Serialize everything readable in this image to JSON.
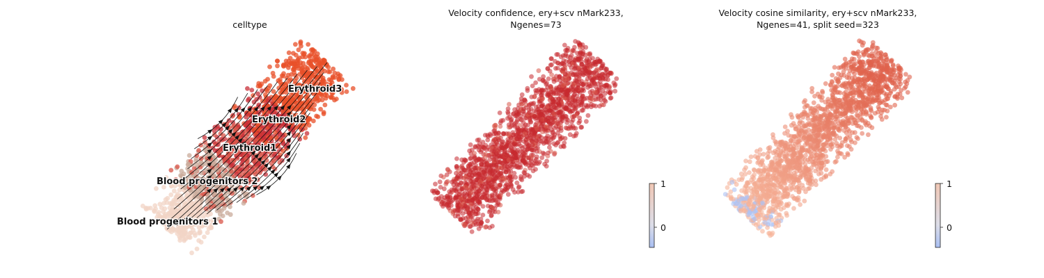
{
  "panels": [
    {
      "title": "celltype"
    },
    {
      "title": "Velocity confidence, ery+scv nMark233,\nNgenes=73"
    },
    {
      "title": "Velocity cosine similarity, ery+scv nMark233,\nNgenes=41, split seed=323"
    }
  ],
  "celltype_labels": [
    "Blood progenitors 1",
    "Blood progenitors 2",
    "Erythroid1",
    "Erythroid2",
    "Erythroid3"
  ],
  "colors": {
    "Blood progenitors 1": "#f1d4c6",
    "Blood progenitors 2": "#c9ab9b",
    "Erythroid1": "#d9564a",
    "Erythroid2": "#c8303a",
    "Erythroid3": "#e8502a",
    "confidence_point": "#c62a30",
    "cosine_point_high": "#e0634c",
    "cosine_point_low": "#f6b49a",
    "cosine_point_negative": "#aec3f5"
  },
  "colorbars": [
    {
      "ticks": [
        "1",
        "0"
      ]
    },
    {
      "ticks": [
        "1",
        "0"
      ]
    }
  ],
  "chart_data": [
    {
      "type": "scatter",
      "title": "celltype",
      "categories": [
        "Blood progenitors 1",
        "Blood progenitors 2",
        "Erythroid1",
        "Erythroid2",
        "Erythroid3"
      ],
      "overlay": "velocity stream arrows",
      "grid": false,
      "legend": "labels on data"
    },
    {
      "type": "scatter",
      "title": "Velocity confidence, ery+scv nMark233,\nNgenes=73",
      "colorbar": {
        "ticks": [
          1,
          0
        ]
      },
      "grid": false
    },
    {
      "type": "scatter",
      "title": "Velocity cosine similarity, ery+scv nMark233,\nNgenes=41, split seed=323",
      "colorbar": {
        "ticks": [
          1,
          0
        ]
      },
      "grid": false
    }
  ]
}
